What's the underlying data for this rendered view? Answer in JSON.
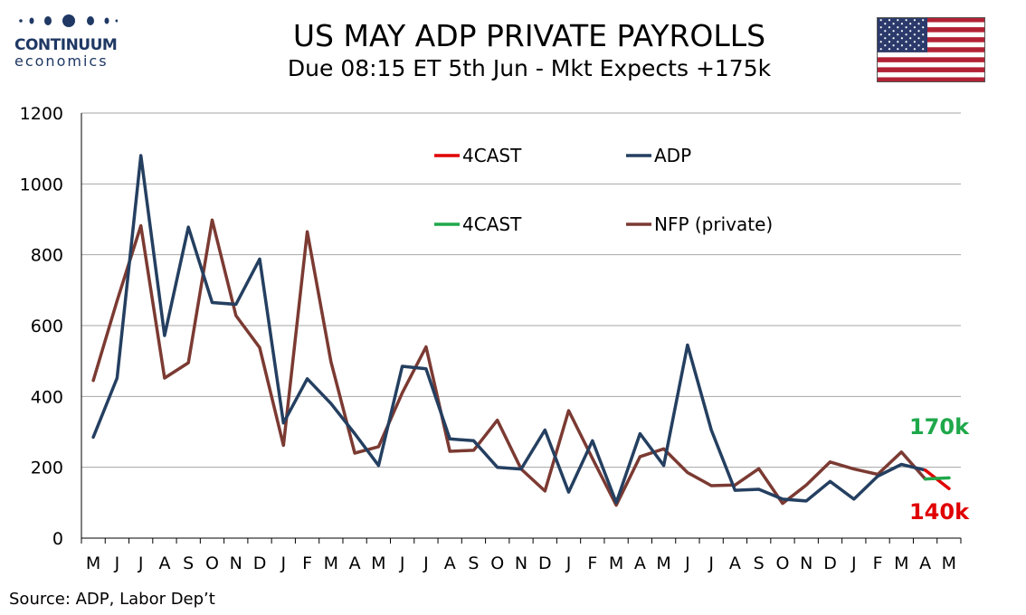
{
  "header": {
    "logo_name": "CONTINUUM",
    "logo_sub": "economics",
    "title": "US MAY ADP PRIVATE PAYROLLS",
    "subtitle": "Due 08:15 ET 5th Jun - Mkt Expects +175k"
  },
  "source": "Source: ADP, Labor Dep’t",
  "colors": {
    "adp": "#243f60",
    "nfp": "#7b3a32",
    "forecast_adp": "#e00000",
    "forecast_nfp": "#1fa84a",
    "grid": "#a6a6a6",
    "logo": "#1f3864"
  },
  "flag_icon": "us-flag-icon",
  "chart_data": {
    "type": "line",
    "categories": [
      "M",
      "J",
      "J",
      "A",
      "S",
      "O",
      "N",
      "D",
      "J",
      "F",
      "M",
      "A",
      "M",
      "J",
      "J",
      "A",
      "S",
      "O",
      "N",
      "D",
      "J",
      "F",
      "M",
      "A",
      "M",
      "J",
      "J",
      "A",
      "S",
      "O",
      "N",
      "D",
      "J",
      "F",
      "M",
      "A",
      "M"
    ],
    "ylim": [
      0,
      1200
    ],
    "yticks": [
      0,
      200,
      400,
      600,
      800,
      1000,
      1200
    ],
    "grid": true,
    "legend_position": "top-center",
    "series": [
      {
        "name": "ADP",
        "values": [
          285,
          452,
          1080,
          572,
          878,
          665,
          660,
          788,
          325,
          450,
          380,
          295,
          205,
          485,
          478,
          280,
          275,
          200,
          195,
          305,
          130,
          275,
          100,
          295,
          205,
          545,
          305,
          135,
          138,
          110,
          105,
          160,
          110,
          175,
          208,
          192,
          null
        ]
      },
      {
        "name": "NFP (private)",
        "values": [
          445,
          670,
          882,
          452,
          495,
          898,
          628,
          538,
          262,
          865,
          498,
          240,
          258,
          410,
          540,
          245,
          248,
          333,
          195,
          133,
          360,
          225,
          93,
          230,
          252,
          185,
          148,
          150,
          196,
          98,
          150,
          215,
          195,
          180,
          243,
          167,
          null
        ]
      },
      {
        "name": "4CAST",
        "values": [
          null,
          null,
          null,
          null,
          null,
          null,
          null,
          null,
          null,
          null,
          null,
          null,
          null,
          null,
          null,
          null,
          null,
          null,
          null,
          null,
          null,
          null,
          null,
          null,
          null,
          null,
          null,
          null,
          null,
          null,
          null,
          null,
          null,
          null,
          null,
          192,
          140
        ]
      },
      {
        "name": "4CAST",
        "values": [
          null,
          null,
          null,
          null,
          null,
          null,
          null,
          null,
          null,
          null,
          null,
          null,
          null,
          null,
          null,
          null,
          null,
          null,
          null,
          null,
          null,
          null,
          null,
          null,
          null,
          null,
          null,
          null,
          null,
          null,
          null,
          null,
          null,
          null,
          null,
          167,
          170
        ]
      }
    ],
    "annotations": [
      {
        "text": "170k",
        "color": "#1fa84a"
      },
      {
        "text": "140k",
        "color": "#e00000"
      }
    ]
  }
}
